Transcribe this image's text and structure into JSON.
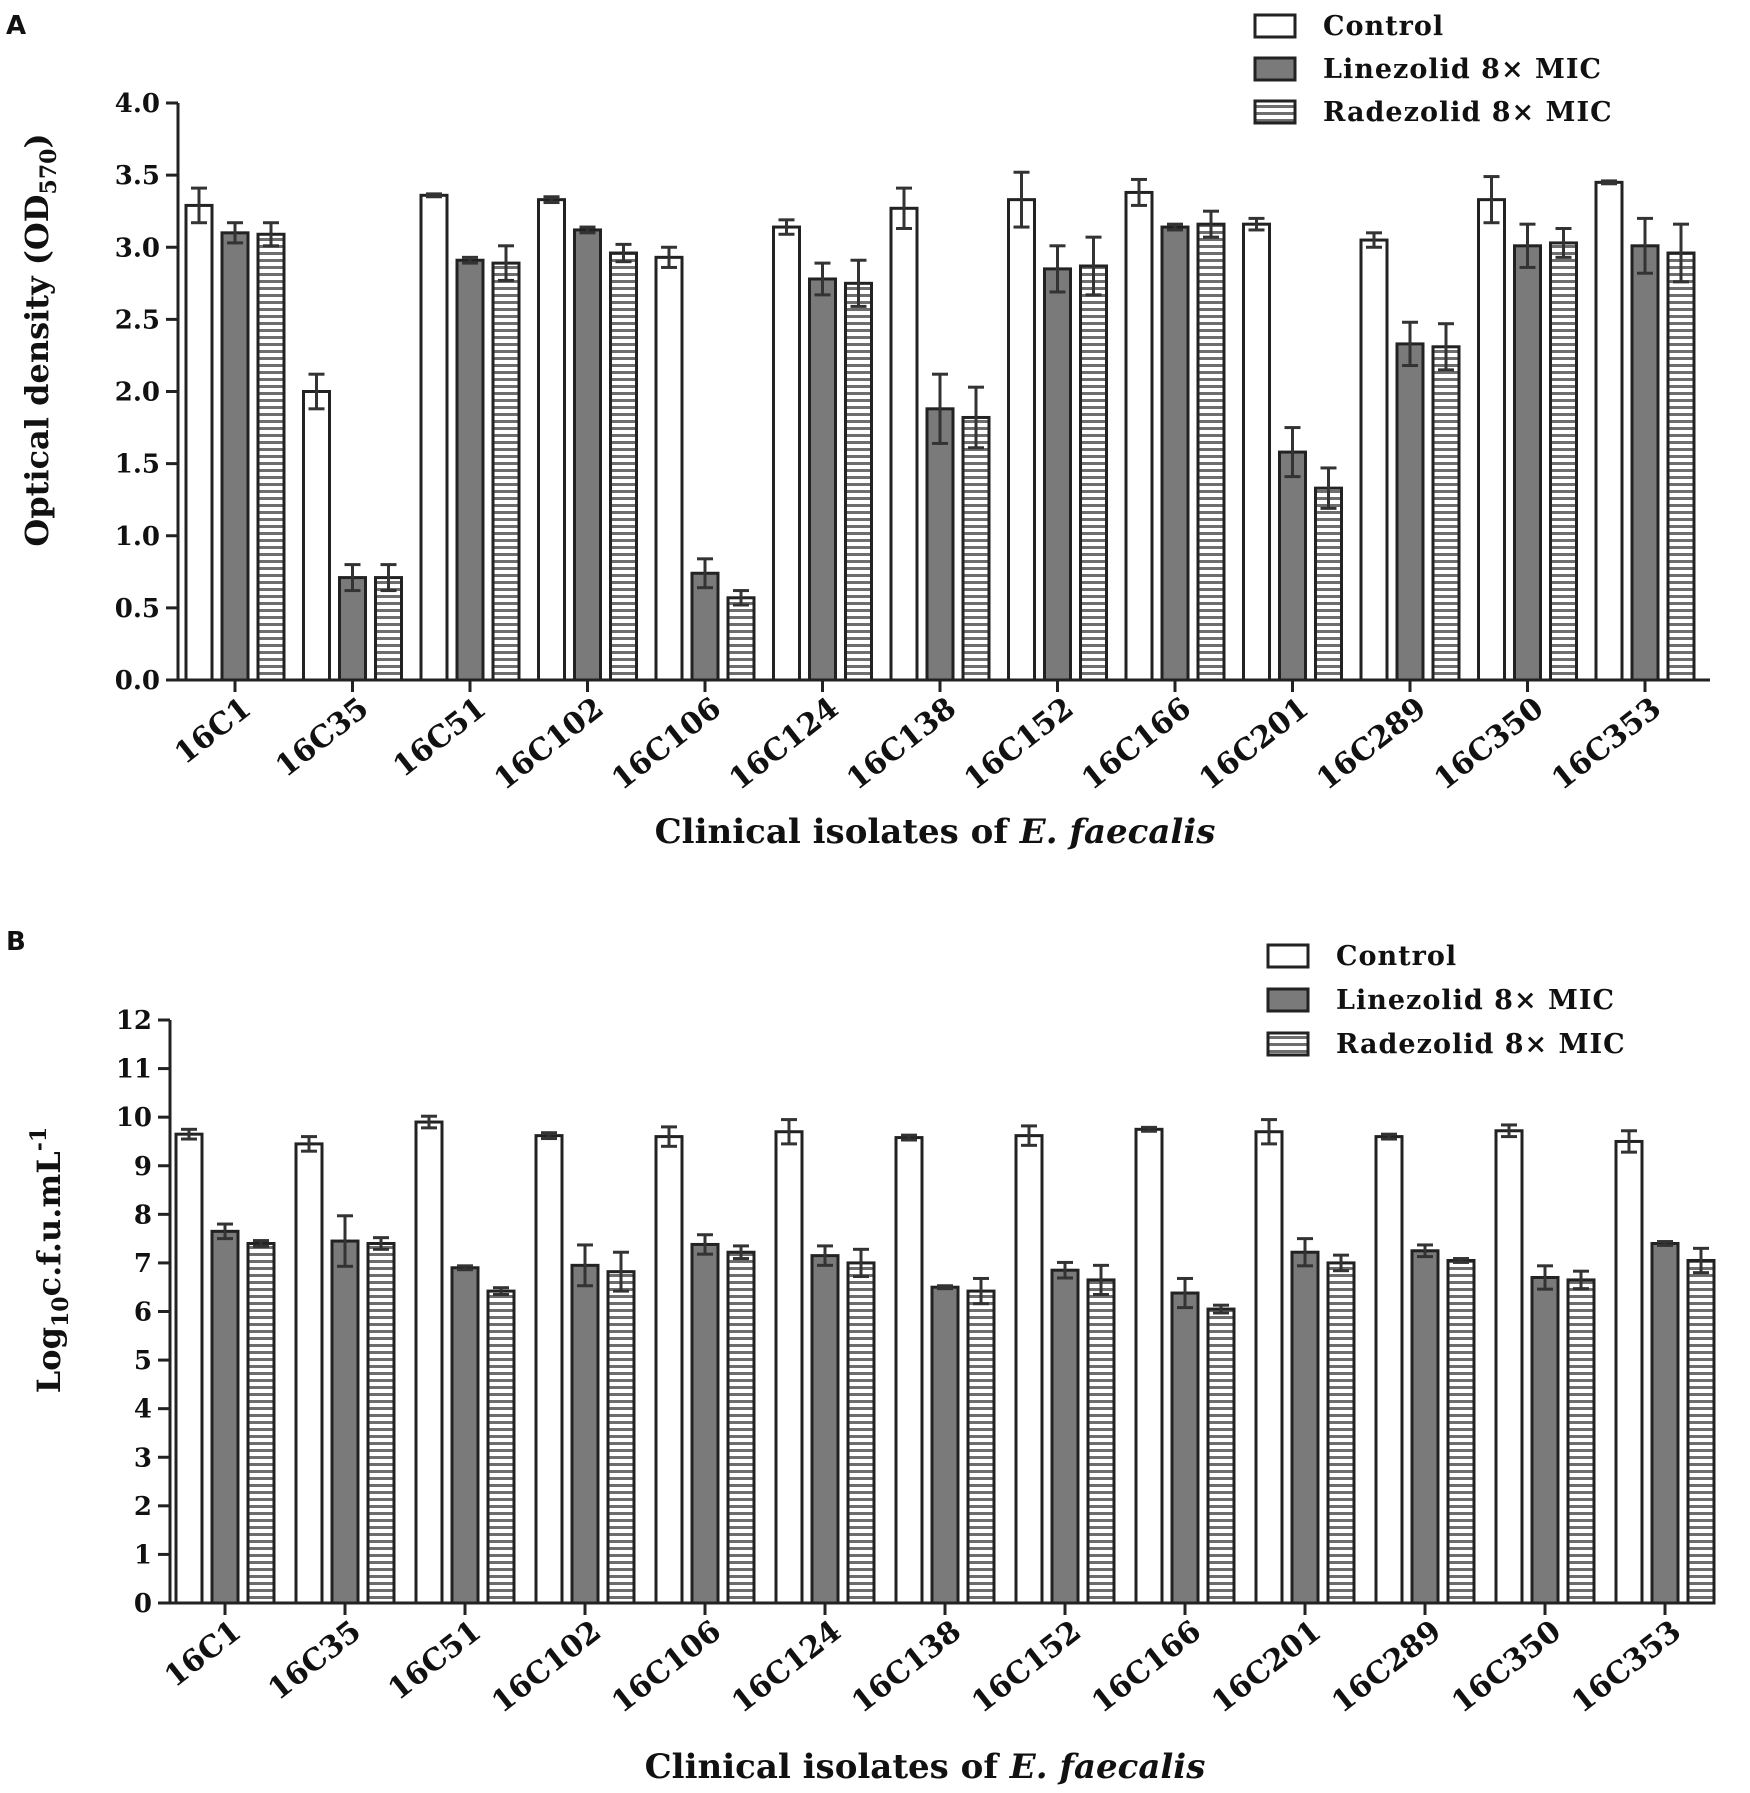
{
  "colors": {
    "control": "#ffffff",
    "linezolid": "#7a7a7a",
    "radezolid_bg": "#ffffff",
    "radezolid_stripe": "#6e6e6e",
    "axis": "#222222",
    "error": "#333333"
  },
  "chart_data": [
    {
      "panel": "A",
      "type": "bar",
      "ylabel_main": "Optical density (OD",
      "ylabel_sub": "570",
      "ylabel_close": ")",
      "xlabel_main": "Clinical isolates of ",
      "xlabel_italic": "E. faecalis",
      "ylim": [
        0,
        4.0
      ],
      "yticks": [
        "0.0",
        "0.5",
        "1.0",
        "1.5",
        "2.0",
        "2.5",
        "3.0",
        "3.5",
        "4.0"
      ],
      "legend_position": "top-right",
      "categories": [
        "16C1",
        "16C35",
        "16C51",
        "16C102",
        "16C106",
        "16C124",
        "16C138",
        "16C152",
        "16C166",
        "16C201",
        "16C289",
        "16C350",
        "16C353"
      ],
      "series": [
        {
          "name": "Control",
          "values": [
            3.29,
            2.0,
            3.36,
            3.33,
            2.93,
            3.14,
            3.27,
            3.33,
            3.38,
            3.16,
            3.05,
            3.33,
            3.45
          ],
          "errors": [
            0.12,
            0.12,
            0.01,
            0.02,
            0.07,
            0.05,
            0.14,
            0.19,
            0.09,
            0.04,
            0.05,
            0.16,
            0.01
          ]
        },
        {
          "name": "Linezolid 8×  MIC",
          "values": [
            3.1,
            0.71,
            2.91,
            3.12,
            0.74,
            2.78,
            1.88,
            2.85,
            3.14,
            1.58,
            2.33,
            3.01,
            3.01
          ],
          "errors": [
            0.07,
            0.09,
            0.02,
            0.02,
            0.1,
            0.11,
            0.24,
            0.16,
            0.02,
            0.17,
            0.15,
            0.15,
            0.19
          ]
        },
        {
          "name": "Radezolid 8×  MIC",
          "values": [
            3.09,
            0.71,
            2.89,
            2.96,
            0.57,
            2.75,
            1.82,
            2.87,
            3.16,
            1.33,
            2.31,
            3.03,
            2.96
          ],
          "errors": [
            0.08,
            0.09,
            0.12,
            0.06,
            0.05,
            0.16,
            0.21,
            0.2,
            0.09,
            0.14,
            0.16,
            0.1,
            0.2
          ]
        }
      ]
    },
    {
      "panel": "B",
      "type": "bar",
      "ylabel_main": "Log",
      "ylabel_sub": "10",
      "ylabel_close": "c.f.u.mL",
      "ylabel_sup": "-1",
      "xlabel_main": "Clinical isolates of ",
      "xlabel_italic": "E. faecalis",
      "ylim": [
        0,
        12
      ],
      "yticks": [
        "0",
        "1",
        "2",
        "3",
        "4",
        "5",
        "6",
        "7",
        "8",
        "9",
        "10",
        "11",
        "12"
      ],
      "legend_position": "top-right",
      "categories": [
        "16C1",
        "16C35",
        "16C51",
        "16C102",
        "16C106",
        "16C124",
        "16C138",
        "16C152",
        "16C166",
        "16C201",
        "16C289",
        "16C350",
        "16C353"
      ],
      "series": [
        {
          "name": "Control",
          "values": [
            9.65,
            9.45,
            9.9,
            9.62,
            9.6,
            9.7,
            9.58,
            9.62,
            9.75,
            9.7,
            9.6,
            9.72,
            9.5
          ],
          "errors": [
            0.1,
            0.15,
            0.12,
            0.06,
            0.2,
            0.25,
            0.05,
            0.2,
            0.04,
            0.25,
            0.05,
            0.12,
            0.22
          ]
        },
        {
          "name": "Linezolid 8×  MIC",
          "values": [
            7.65,
            7.45,
            6.9,
            6.95,
            7.38,
            7.15,
            6.5,
            6.85,
            6.38,
            7.22,
            7.25,
            6.7,
            7.4
          ],
          "errors": [
            0.15,
            0.52,
            0.04,
            0.42,
            0.2,
            0.2,
            0.03,
            0.16,
            0.3,
            0.28,
            0.12,
            0.24,
            0.04
          ]
        },
        {
          "name": "Radezolid 8×  MIC",
          "values": [
            7.4,
            7.4,
            6.42,
            6.82,
            7.22,
            7.0,
            6.42,
            6.65,
            6.05,
            7.0,
            7.05,
            6.65,
            7.05
          ],
          "errors": [
            0.06,
            0.12,
            0.07,
            0.4,
            0.13,
            0.28,
            0.26,
            0.3,
            0.08,
            0.16,
            0.04,
            0.18,
            0.25
          ]
        }
      ]
    }
  ]
}
